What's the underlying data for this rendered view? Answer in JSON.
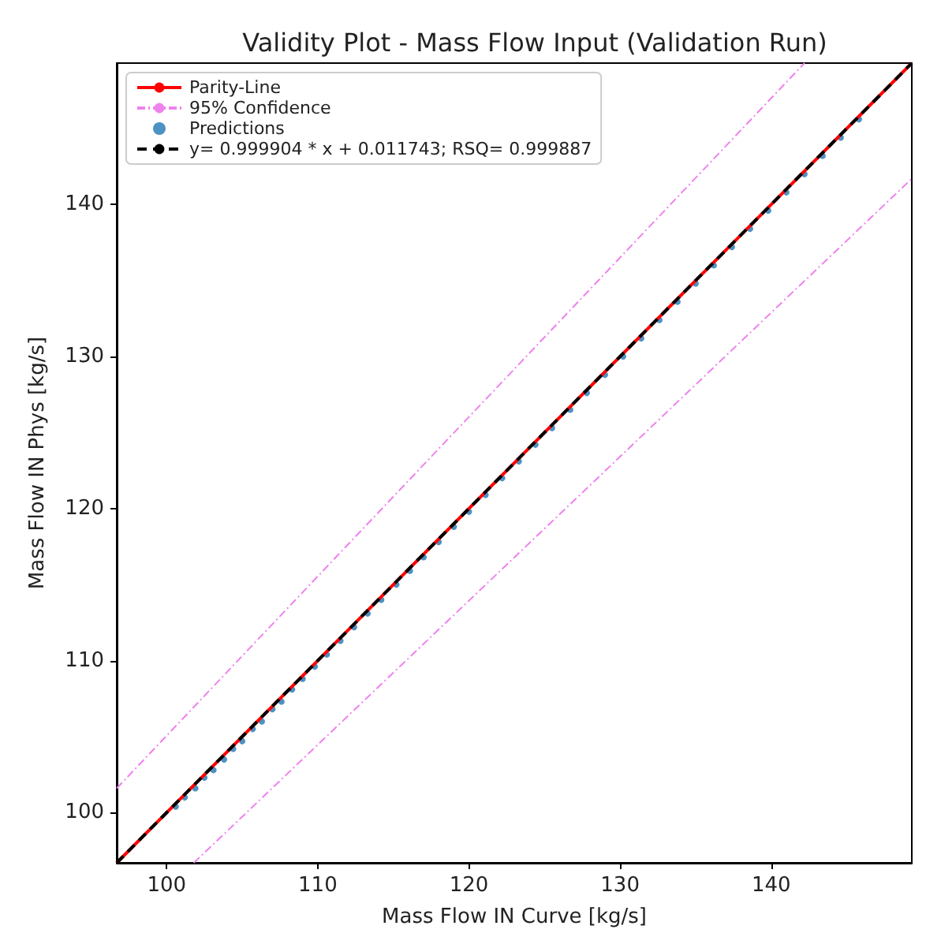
{
  "chart_data": {
    "type": "scatter",
    "title": "Validity Plot - Mass Flow Input (Validation Run)",
    "xlabel": "Mass Flow IN Curve [kg/s]",
    "ylabel": "Mass Flow IN Phys [kg/s]",
    "xlim": [
      96.7,
      149.3
    ],
    "ylim": [
      96.7,
      149.3
    ],
    "xticks": [
      100,
      110,
      120,
      130,
      140
    ],
    "yticks": [
      100,
      110,
      120,
      130,
      140
    ],
    "grid": false,
    "legend": "top left",
    "series": [
      {
        "name": "Parity-Line",
        "type": "line",
        "color": "#ff0000",
        "x": [
          96.7,
          149.3
        ],
        "values": [
          96.7,
          149.3
        ],
        "line_style": "solid",
        "marker": "none"
      },
      {
        "name": "95% Confidence",
        "type": "line",
        "color": "#ee82ee",
        "x": [
          96.7,
          142.2
        ],
        "values": [
          101.6,
          149.3
        ],
        "line_style": "dashed",
        "marker": "none"
      },
      {
        "type": "line",
        "color": "#ee82ee",
        "x": [
          101.8,
          149.3
        ],
        "values": [
          96.7,
          141.7
        ],
        "line_style": "dashed",
        "marker": "none"
      },
      {
        "name": "Predictions",
        "type": "scatter",
        "color": "#1f77b4",
        "marker": "circle",
        "x": [
          100.6,
          101.2,
          101.9,
          102.5,
          103.1,
          103.8,
          104.4,
          105.0,
          105.7,
          106.3,
          107.0,
          107.6,
          108.3,
          109.0,
          109.8,
          110.6,
          111.5,
          112.4,
          113.3,
          114.2,
          115.2,
          116.1,
          117.0,
          118.0,
          119.0,
          120.0,
          121.1,
          122.2,
          123.3,
          124.4,
          125.5,
          126.7,
          127.8,
          129.0,
          130.2,
          131.4,
          132.6,
          133.8,
          135.0,
          136.2,
          137.4,
          138.6,
          139.8,
          141.0,
          142.2,
          143.4,
          144.6,
          145.8
        ],
        "values": [
          100.4,
          101.0,
          101.6,
          102.3,
          102.8,
          103.5,
          104.2,
          104.7,
          105.5,
          106.0,
          106.8,
          107.3,
          108.1,
          108.8,
          109.6,
          110.4,
          111.3,
          112.2,
          113.1,
          114.0,
          115.0,
          115.9,
          116.8,
          117.8,
          118.8,
          119.8,
          120.9,
          122.0,
          123.1,
          124.2,
          125.3,
          126.5,
          127.6,
          128.8,
          130.0,
          131.2,
          132.4,
          133.6,
          134.8,
          136.0,
          137.2,
          138.4,
          139.6,
          140.8,
          142.0,
          143.2,
          144.4,
          145.6
        ]
      },
      {
        "name": "y= 0.999904 * x + 0.011743; RSQ= 0.999887",
        "type": "line",
        "color": "#000000",
        "x": [
          96.7,
          149.3
        ],
        "values": [
          96.7,
          149.3
        ],
        "line_style": "dashed",
        "marker": "none"
      }
    ]
  }
}
